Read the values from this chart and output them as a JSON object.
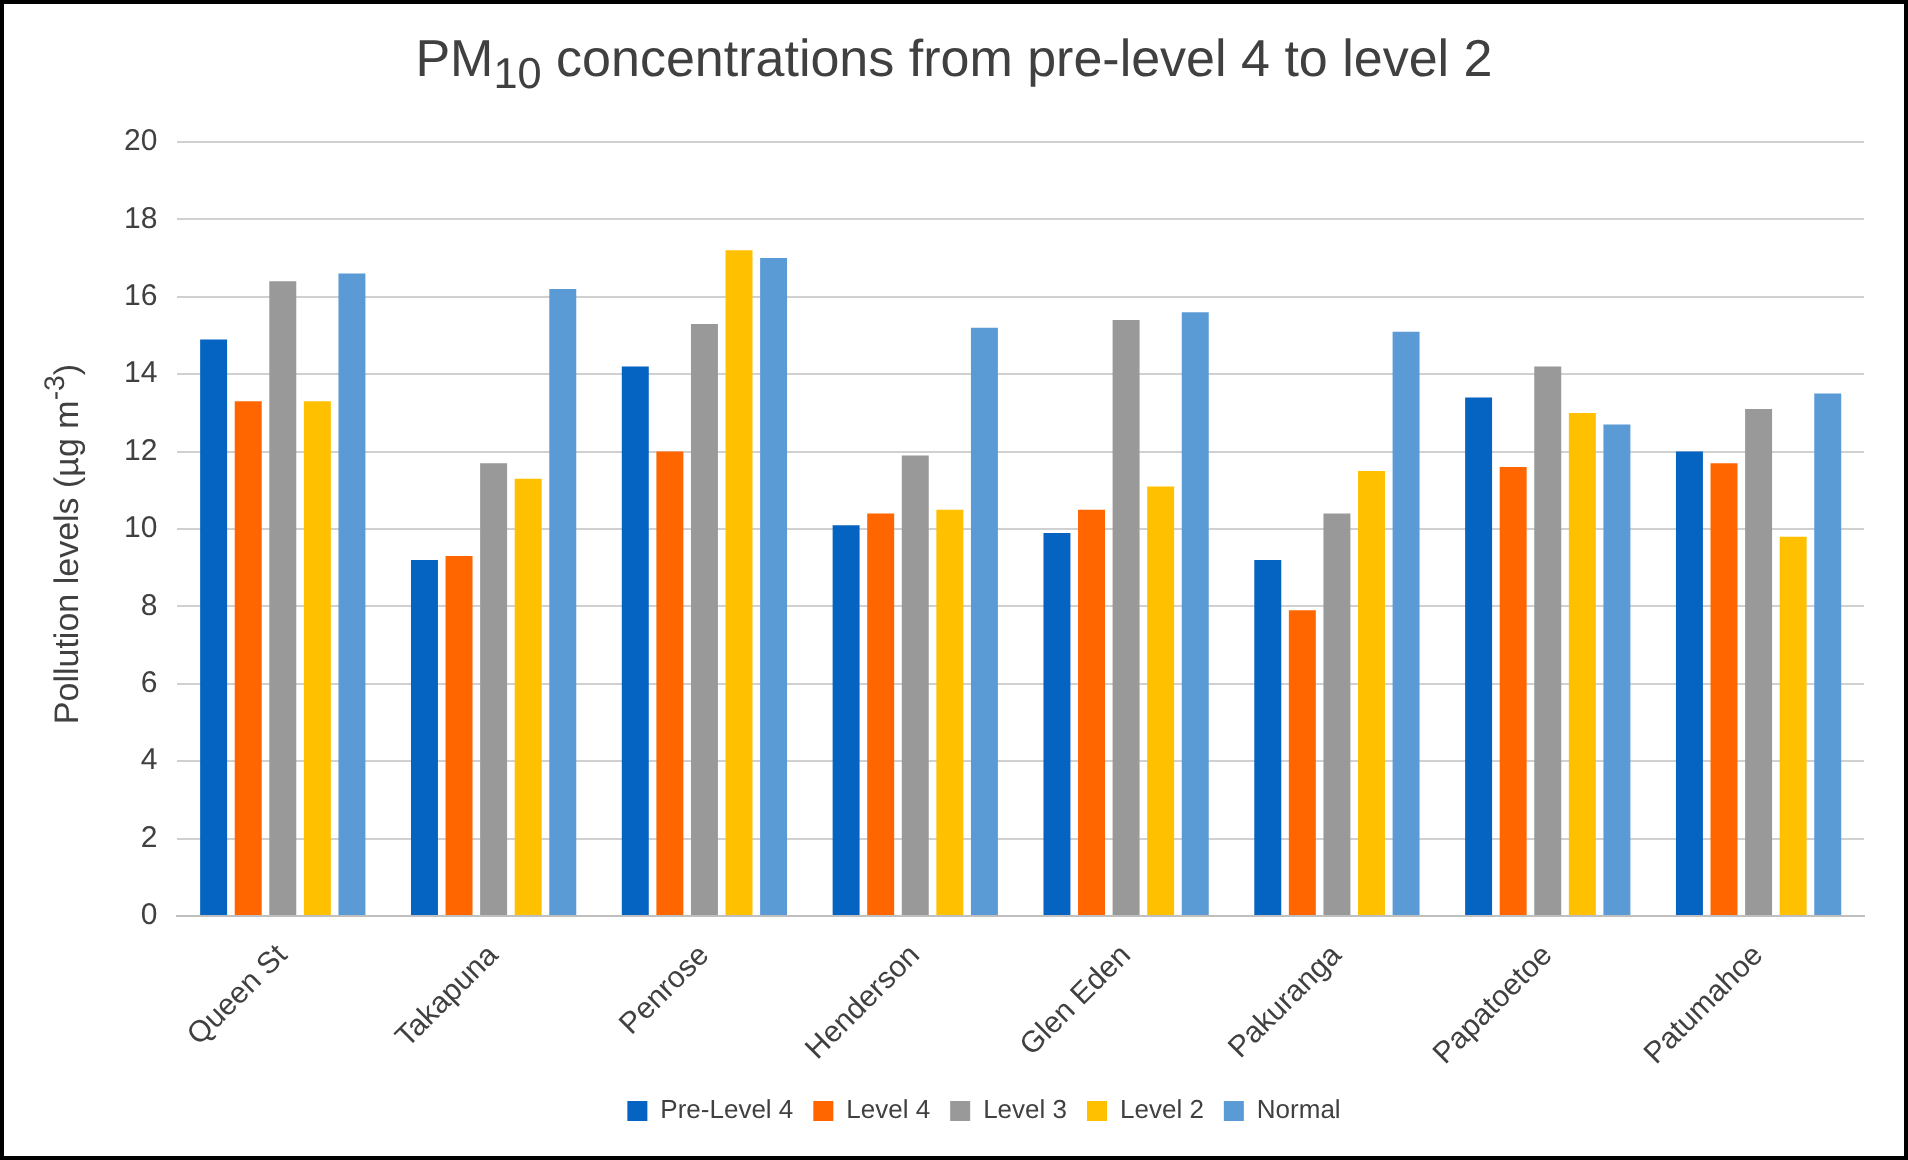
{
  "chart_data": {
    "type": "bar",
    "title": "PM$_{10}$ concentrations from pre-level  4 to level 2",
    "ylabel": "Pollution levels (µg m$^{-3}$)",
    "categories": [
      "Queen St",
      "Takapuna",
      "Penrose",
      "Henderson",
      "Glen Eden",
      "Pakuranga",
      "Papatoetoe",
      "Patumahoe"
    ],
    "series": [
      {
        "name": "Pre-Level 4",
        "color": "#0563c1",
        "values": [
          14.9,
          9.2,
          14.2,
          10.1,
          9.9,
          9.2,
          13.4,
          12.0
        ]
      },
      {
        "name": "Level 4",
        "color": "#ff6600",
        "values": [
          13.3,
          9.3,
          12.0,
          10.4,
          10.5,
          7.9,
          11.6,
          11.7
        ]
      },
      {
        "name": "Level 3",
        "color": "#999999",
        "values": [
          16.4,
          11.7,
          15.3,
          11.9,
          15.4,
          10.4,
          14.2,
          13.1
        ]
      },
      {
        "name": "Level 2",
        "color": "#ffc000",
        "values": [
          13.3,
          11.3,
          17.2,
          10.5,
          11.1,
          11.5,
          13.0,
          9.8
        ]
      },
      {
        "name": "Normal",
        "color": "#5b9bd5",
        "values": [
          16.6,
          16.2,
          17.0,
          15.2,
          15.6,
          15.1,
          12.7,
          13.5
        ]
      }
    ],
    "ylim": [
      0,
      20
    ],
    "yticks": [
      0,
      2,
      4,
      6,
      8,
      10,
      12,
      14,
      16,
      18,
      20
    ],
    "grid": "y",
    "legend": "bottom"
  }
}
